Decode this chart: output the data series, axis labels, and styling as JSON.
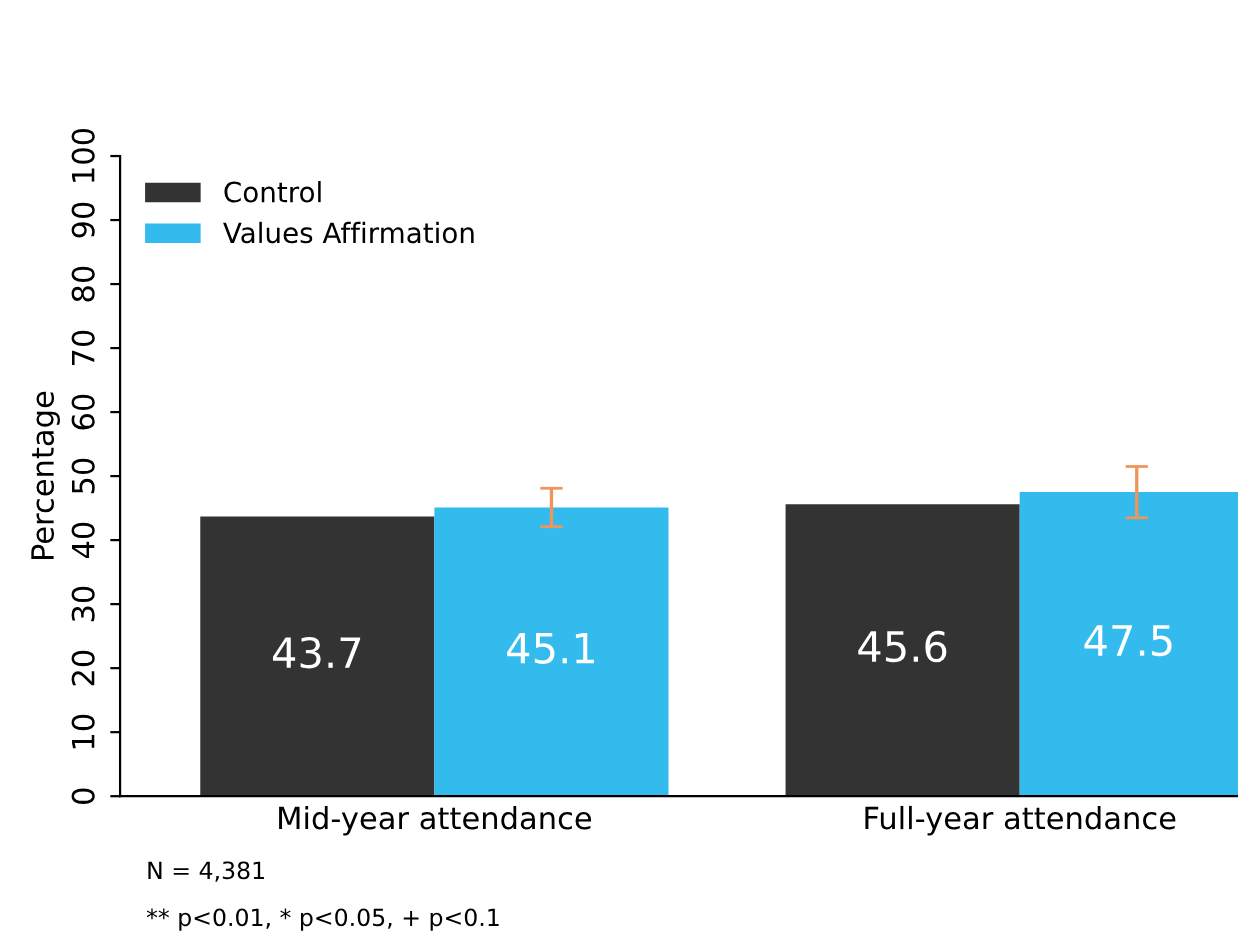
{
  "chart_data": {
    "type": "bar",
    "ylabel": "Percentage",
    "categories": [
      "Mid-year attendance",
      "Full-year attendance"
    ],
    "series": [
      {
        "name": "Control",
        "color": "#333333",
        "values": [
          43.7,
          45.6
        ]
      },
      {
        "name": "Values Affirmation",
        "color": "#33bbee",
        "values": [
          45.1,
          47.5
        ],
        "errors": [
          3,
          4
        ]
      }
    ],
    "ylim": [
      0,
      100
    ],
    "yticks": [
      0,
      10,
      20,
      30,
      40,
      50,
      60,
      70,
      80,
      90,
      100
    ],
    "grid": false,
    "legend": "top left",
    "data_labels": true,
    "annotations": [
      "N = 4,381",
      "** p<0.01, * p<0.05, + p<0.1"
    ]
  }
}
